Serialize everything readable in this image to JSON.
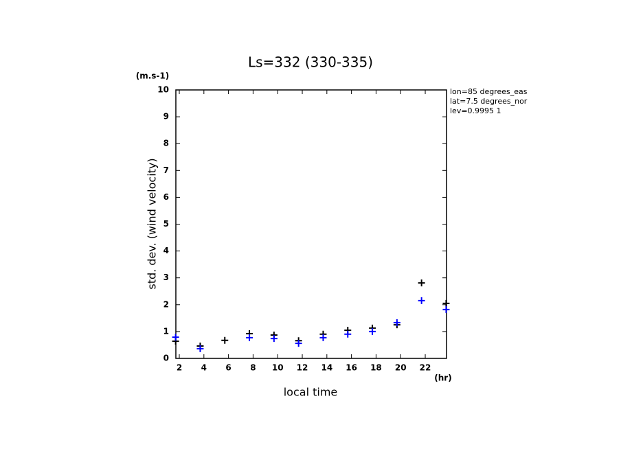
{
  "chart_data": {
    "type": "scatter",
    "title": "Ls=332 (330-335)",
    "x_label": "local time",
    "y_label": "std. dev. (wind velocity)",
    "y_unit": "(m.s-1)",
    "x_unit": "(hr)",
    "annotations": [
      "lon=85 degrees_eas",
      "lat=7.5 degrees_nor",
      "lev=0.9995 1"
    ],
    "x": [
      1.7,
      3.7,
      5.7,
      7.7,
      9.7,
      11.7,
      13.7,
      15.7,
      17.7,
      19.7,
      21.7,
      23.7
    ],
    "series": [
      {
        "color": "#000000",
        "values": [
          0.64,
          0.46,
          0.67,
          0.92,
          0.87,
          0.66,
          0.9,
          1.05,
          1.13,
          1.25,
          2.81,
          2.05
        ]
      },
      {
        "color": "#0000ff",
        "values": [
          0.79,
          0.36,
          null,
          0.77,
          0.74,
          0.56,
          0.77,
          0.9,
          1.0,
          1.33,
          2.15,
          1.82
        ]
      }
    ],
    "xlim": [
      1.72,
      23.73
    ],
    "xticks": [
      2,
      4,
      6,
      8,
      10,
      12,
      14,
      16,
      18,
      20,
      22
    ],
    "ylim": [
      0,
      10
    ],
    "yticks": [
      0,
      1,
      2,
      3,
      4,
      5,
      6,
      7,
      8,
      9,
      10
    ]
  }
}
